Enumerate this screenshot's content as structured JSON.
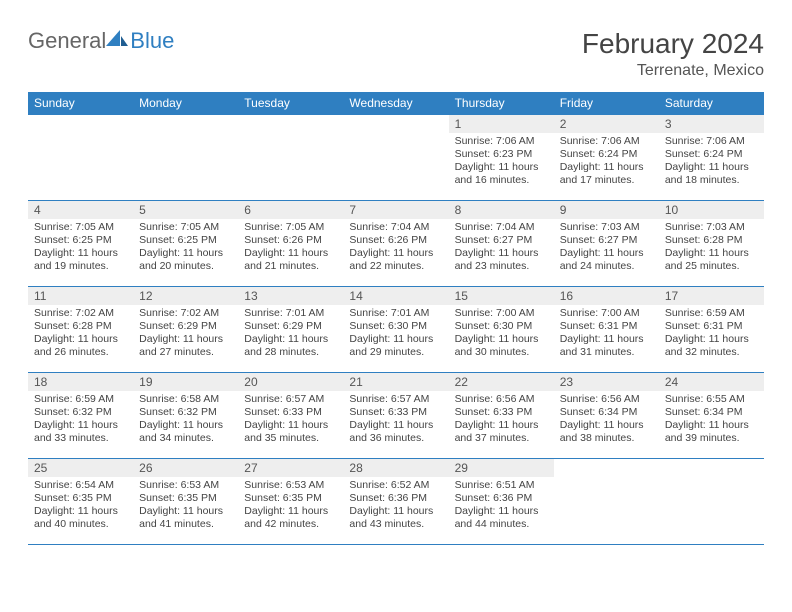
{
  "logo": {
    "text1": "General",
    "text2": "Blue",
    "color1": "#666666",
    "color2": "#2f7fc1"
  },
  "title": "February 2024",
  "location": "Terrenate, Mexico",
  "colors": {
    "header_bg": "#2f7fc1",
    "header_text": "#ffffff",
    "daynum_bg": "#eeeeee",
    "border": "#2f7fc1"
  },
  "day_headers": [
    "Sunday",
    "Monday",
    "Tuesday",
    "Wednesday",
    "Thursday",
    "Friday",
    "Saturday"
  ],
  "weeks": [
    [
      null,
      null,
      null,
      null,
      {
        "n": "1",
        "sunrise": "Sunrise: 7:06 AM",
        "sunset": "Sunset: 6:23 PM",
        "daylight": "Daylight: 11 hours and 16 minutes."
      },
      {
        "n": "2",
        "sunrise": "Sunrise: 7:06 AM",
        "sunset": "Sunset: 6:24 PM",
        "daylight": "Daylight: 11 hours and 17 minutes."
      },
      {
        "n": "3",
        "sunrise": "Sunrise: 7:06 AM",
        "sunset": "Sunset: 6:24 PM",
        "daylight": "Daylight: 11 hours and 18 minutes."
      }
    ],
    [
      {
        "n": "4",
        "sunrise": "Sunrise: 7:05 AM",
        "sunset": "Sunset: 6:25 PM",
        "daylight": "Daylight: 11 hours and 19 minutes."
      },
      {
        "n": "5",
        "sunrise": "Sunrise: 7:05 AM",
        "sunset": "Sunset: 6:25 PM",
        "daylight": "Daylight: 11 hours and 20 minutes."
      },
      {
        "n": "6",
        "sunrise": "Sunrise: 7:05 AM",
        "sunset": "Sunset: 6:26 PM",
        "daylight": "Daylight: 11 hours and 21 minutes."
      },
      {
        "n": "7",
        "sunrise": "Sunrise: 7:04 AM",
        "sunset": "Sunset: 6:26 PM",
        "daylight": "Daylight: 11 hours and 22 minutes."
      },
      {
        "n": "8",
        "sunrise": "Sunrise: 7:04 AM",
        "sunset": "Sunset: 6:27 PM",
        "daylight": "Daylight: 11 hours and 23 minutes."
      },
      {
        "n": "9",
        "sunrise": "Sunrise: 7:03 AM",
        "sunset": "Sunset: 6:27 PM",
        "daylight": "Daylight: 11 hours and 24 minutes."
      },
      {
        "n": "10",
        "sunrise": "Sunrise: 7:03 AM",
        "sunset": "Sunset: 6:28 PM",
        "daylight": "Daylight: 11 hours and 25 minutes."
      }
    ],
    [
      {
        "n": "11",
        "sunrise": "Sunrise: 7:02 AM",
        "sunset": "Sunset: 6:28 PM",
        "daylight": "Daylight: 11 hours and 26 minutes."
      },
      {
        "n": "12",
        "sunrise": "Sunrise: 7:02 AM",
        "sunset": "Sunset: 6:29 PM",
        "daylight": "Daylight: 11 hours and 27 minutes."
      },
      {
        "n": "13",
        "sunrise": "Sunrise: 7:01 AM",
        "sunset": "Sunset: 6:29 PM",
        "daylight": "Daylight: 11 hours and 28 minutes."
      },
      {
        "n": "14",
        "sunrise": "Sunrise: 7:01 AM",
        "sunset": "Sunset: 6:30 PM",
        "daylight": "Daylight: 11 hours and 29 minutes."
      },
      {
        "n": "15",
        "sunrise": "Sunrise: 7:00 AM",
        "sunset": "Sunset: 6:30 PM",
        "daylight": "Daylight: 11 hours and 30 minutes."
      },
      {
        "n": "16",
        "sunrise": "Sunrise: 7:00 AM",
        "sunset": "Sunset: 6:31 PM",
        "daylight": "Daylight: 11 hours and 31 minutes."
      },
      {
        "n": "17",
        "sunrise": "Sunrise: 6:59 AM",
        "sunset": "Sunset: 6:31 PM",
        "daylight": "Daylight: 11 hours and 32 minutes."
      }
    ],
    [
      {
        "n": "18",
        "sunrise": "Sunrise: 6:59 AM",
        "sunset": "Sunset: 6:32 PM",
        "daylight": "Daylight: 11 hours and 33 minutes."
      },
      {
        "n": "19",
        "sunrise": "Sunrise: 6:58 AM",
        "sunset": "Sunset: 6:32 PM",
        "daylight": "Daylight: 11 hours and 34 minutes."
      },
      {
        "n": "20",
        "sunrise": "Sunrise: 6:57 AM",
        "sunset": "Sunset: 6:33 PM",
        "daylight": "Daylight: 11 hours and 35 minutes."
      },
      {
        "n": "21",
        "sunrise": "Sunrise: 6:57 AM",
        "sunset": "Sunset: 6:33 PM",
        "daylight": "Daylight: 11 hours and 36 minutes."
      },
      {
        "n": "22",
        "sunrise": "Sunrise: 6:56 AM",
        "sunset": "Sunset: 6:33 PM",
        "daylight": "Daylight: 11 hours and 37 minutes."
      },
      {
        "n": "23",
        "sunrise": "Sunrise: 6:56 AM",
        "sunset": "Sunset: 6:34 PM",
        "daylight": "Daylight: 11 hours and 38 minutes."
      },
      {
        "n": "24",
        "sunrise": "Sunrise: 6:55 AM",
        "sunset": "Sunset: 6:34 PM",
        "daylight": "Daylight: 11 hours and 39 minutes."
      }
    ],
    [
      {
        "n": "25",
        "sunrise": "Sunrise: 6:54 AM",
        "sunset": "Sunset: 6:35 PM",
        "daylight": "Daylight: 11 hours and 40 minutes."
      },
      {
        "n": "26",
        "sunrise": "Sunrise: 6:53 AM",
        "sunset": "Sunset: 6:35 PM",
        "daylight": "Daylight: 11 hours and 41 minutes."
      },
      {
        "n": "27",
        "sunrise": "Sunrise: 6:53 AM",
        "sunset": "Sunset: 6:35 PM",
        "daylight": "Daylight: 11 hours and 42 minutes."
      },
      {
        "n": "28",
        "sunrise": "Sunrise: 6:52 AM",
        "sunset": "Sunset: 6:36 PM",
        "daylight": "Daylight: 11 hours and 43 minutes."
      },
      {
        "n": "29",
        "sunrise": "Sunrise: 6:51 AM",
        "sunset": "Sunset: 6:36 PM",
        "daylight": "Daylight: 11 hours and 44 minutes."
      },
      null,
      null
    ]
  ]
}
